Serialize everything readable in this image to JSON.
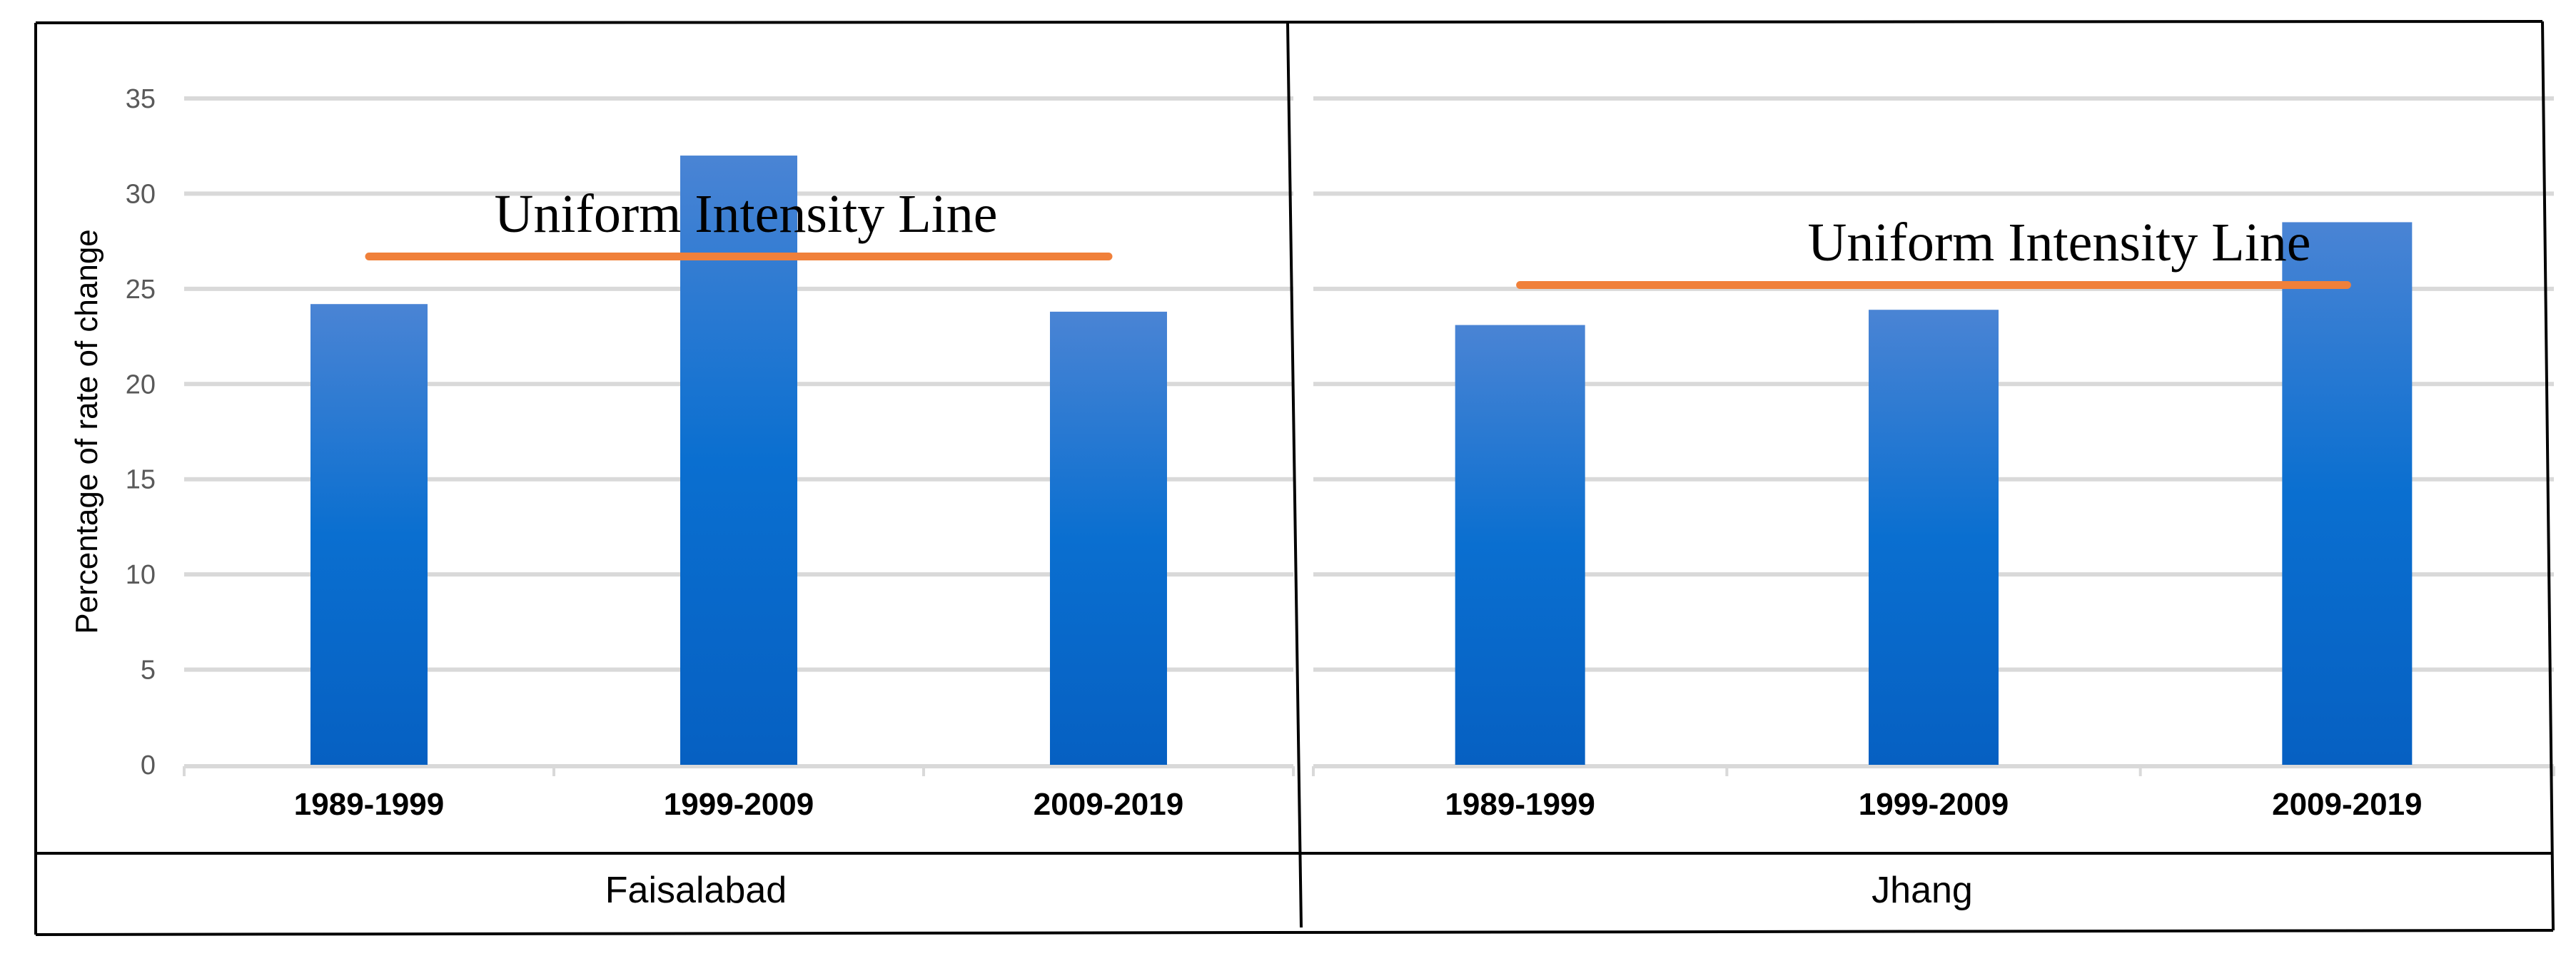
{
  "chart_data": {
    "type": "bar",
    "ylabel": "Percentage of rate of change",
    "ylim": [
      0,
      35
    ],
    "yticks": [
      0,
      5,
      10,
      15,
      20,
      25,
      30,
      35
    ],
    "grid": true,
    "panels": [
      {
        "group": "Faisalabad",
        "categories": [
          "1989-1999",
          "1999-2009",
          "2009-2019"
        ],
        "values": [
          24.2,
          32.0,
          23.8
        ],
        "uniform_intensity_line": 26.7,
        "line_label": "Uniform Intensity Line"
      },
      {
        "group": "Jhang",
        "categories": [
          "1989-1999",
          "1999-2009",
          "2009-2019"
        ],
        "values": [
          23.1,
          23.9,
          28.5
        ],
        "uniform_intensity_line": 25.2,
        "line_label": "Uniform Intensity Line"
      }
    ],
    "colors": {
      "bar_top": "#4a84d4",
      "bar_mid": "#0a6fd0",
      "bar_bottom": "#0660c2",
      "line": "#f0803a",
      "grid": "#d9d9d9",
      "tick_label": "#595959",
      "border": "#000000"
    }
  }
}
